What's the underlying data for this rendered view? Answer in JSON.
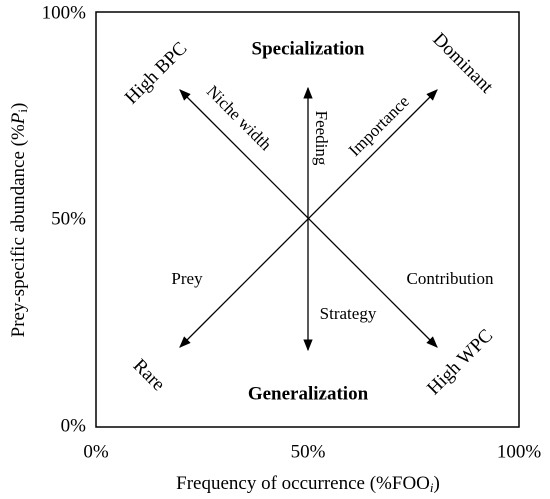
{
  "axes": {
    "y_ticks": [
      "100%",
      "50%",
      "0%"
    ],
    "x_ticks": [
      "0%",
      "50%",
      "100%"
    ],
    "y_label": {
      "before": "Prey-specific abundance (%",
      "italic": "P",
      "sub": "i",
      "after": ")"
    },
    "x_label": {
      "before": "Frequency of occurrence (%FOO",
      "sub": "i",
      "after": ")"
    }
  },
  "quadrants": {
    "top": "Specialization",
    "bottom": "Generalization",
    "top_left": "High BPC",
    "top_right": "Dominant",
    "bottom_left": "Rare",
    "bottom_right": "High WPC"
  },
  "arrows": {
    "niche_width": "Niche width",
    "importance": "Importance",
    "feeding": "Feeding",
    "prey": "Prey",
    "contribution": "Contribution",
    "strategy": "Strategy"
  }
}
